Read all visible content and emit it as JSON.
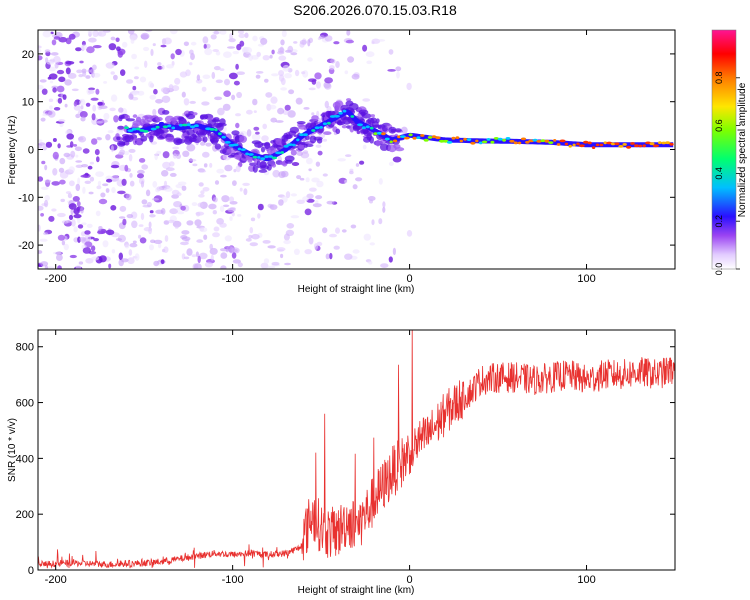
{
  "title": "S206.2026.070.15.03.R18",
  "chart_data": [
    {
      "type": "heatmap",
      "xlabel": "Height of straight line (km)",
      "ylabel": "Frequency (Hz)",
      "xlim": [
        -210,
        150
      ],
      "ylim": [
        -25,
        25
      ],
      "xticks": [
        -200,
        -100,
        0,
        100
      ],
      "yticks": [
        -20,
        -10,
        0,
        10,
        20
      ],
      "grid": false,
      "colorbar": {
        "label": "Normalized spectral amplitude",
        "range": [
          0,
          1
        ],
        "ticks": [
          "0.0",
          "0.2",
          "0.4",
          "0.6",
          "0.8"
        ],
        "colors": [
          "#ffffff",
          "#b784f0",
          "#5a00d6",
          "#2020ff",
          "#00c8ff",
          "#00ff50",
          "#ffff00",
          "#ff8000",
          "#ff0000",
          "#ff1493"
        ]
      },
      "ridge": {
        "x": [
          -160,
          -150,
          -140,
          -130,
          -120,
          -110,
          -100,
          -90,
          -80,
          -70,
          -60,
          -50,
          -40,
          -35,
          -30,
          -20,
          -10,
          0,
          10,
          20,
          40,
          60,
          80,
          100,
          120,
          150
        ],
        "y": [
          4,
          4,
          5,
          4.5,
          5,
          4,
          1,
          -1,
          -2,
          0,
          3,
          5,
          7,
          8,
          6,
          4,
          2,
          3,
          2.5,
          2,
          1.8,
          1.7,
          1.5,
          1,
          1,
          1
        ]
      }
    },
    {
      "type": "line",
      "xlabel": "Height of straight line (km)",
      "ylabel": "SNR (10 * v/v)",
      "xlim": [
        -210,
        150
      ],
      "ylim": [
        0,
        860
      ],
      "xticks": [
        -200,
        -100,
        0,
        100
      ],
      "yticks": [
        0,
        200,
        400,
        600,
        800
      ],
      "grid": false,
      "series": [
        {
          "color": "#e8312f",
          "x": [
            -210,
            -190,
            -170,
            -150,
            -140,
            -130,
            -120,
            -110,
            -100,
            -90,
            -80,
            -70,
            -62,
            -58,
            -55,
            -50,
            -45,
            -40,
            -35,
            -30,
            -25,
            -20,
            -15,
            -10,
            -5,
            0,
            5,
            10,
            15,
            20,
            25,
            30,
            35,
            40,
            50,
            60,
            70,
            80,
            90,
            100,
            110,
            120,
            130,
            140,
            150
          ],
          "y": [
            20,
            25,
            20,
            25,
            30,
            40,
            50,
            60,
            55,
            60,
            55,
            60,
            80,
            150,
            200,
            150,
            130,
            140,
            180,
            150,
            200,
            250,
            300,
            350,
            380,
            420,
            460,
            480,
            520,
            560,
            590,
            620,
            640,
            680,
            690,
            690,
            680,
            690,
            700,
            680,
            700,
            700,
            710,
            700,
            720
          ]
        }
      ]
    }
  ]
}
